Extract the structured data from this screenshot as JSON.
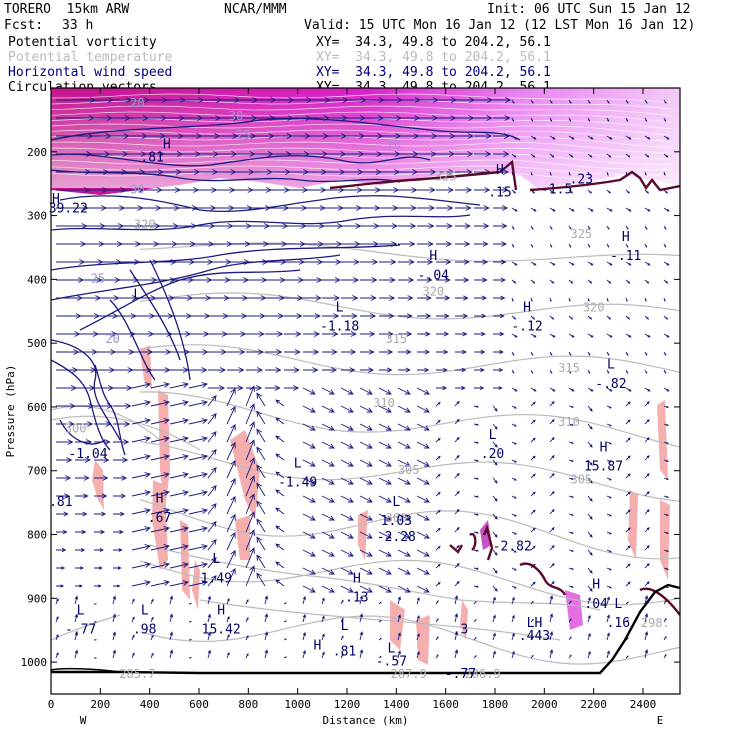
{
  "header": {
    "model": "TORERO  15km ARW",
    "org": "NCAR/MMM",
    "init": "Init: 06 UTC Sun 15 Jan 12",
    "fcst_label": "Fcst:",
    "fcst_value": "33 h",
    "valid": "Valid: 15 UTC Mon 16 Jan 12 (12 LST Mon 16 Jan 12)"
  },
  "fields": [
    {
      "name": "Potential vorticity",
      "xy": "XY=  34.3, 49.8 to 204.2, 56.1",
      "color": "#000000"
    },
    {
      "name": "Potential temperature",
      "xy": "XY=  34.3, 49.8 to 204.2, 56.1",
      "color": "#bbbbbb"
    },
    {
      "name": "Horizontal wind speed",
      "xy": "XY=  34.3, 49.8 to 204.2, 56.1",
      "color": "#000080"
    },
    {
      "name": "Circulation vectors",
      "xy": "XY=  34.3, 49.8 to 204.2, 56.1",
      "color": "#000000"
    }
  ],
  "colors": {
    "wind_speed": "#1a1a80",
    "theta": "#bbbbbb",
    "pv_low": "#f4a6a6",
    "pv_high": "#e020e0",
    "terrain": "#000000",
    "pv_contour": "#5a0a2a"
  },
  "chart_data": {
    "type": "cross-section",
    "xlabel": "Distance (km)",
    "ylabel": "Pressure (hPa)",
    "xlim": [
      0,
      2550
    ],
    "ylim": [
      1050,
      100
    ],
    "x_ticks": [
      "0",
      "200",
      "400",
      "600",
      "800",
      "1000",
      "1200",
      "1400",
      "1600",
      "1800",
      "2000",
      "2200",
      "2400"
    ],
    "x_tick_values": [
      0,
      200,
      400,
      600,
      800,
      1000,
      1200,
      1400,
      1600,
      1800,
      2000,
      2200,
      2400
    ],
    "y_ticks": [
      "200",
      "300",
      "400",
      "500",
      "600",
      "700",
      "800",
      "900",
      "1000"
    ],
    "y_tick_values": [
      200,
      300,
      400,
      500,
      600,
      700,
      800,
      900,
      1000
    ],
    "x_end_labels": {
      "left": "W",
      "right": "E"
    },
    "theta_labels": [
      {
        "text": "325",
        "x": 2150,
        "p": 335
      },
      {
        "text": "320",
        "x": 380,
        "p": 320
      },
      {
        "text": "320",
        "x": 1550,
        "p": 425
      },
      {
        "text": "320",
        "x": 2200,
        "p": 450
      },
      {
        "text": "315",
        "x": 1400,
        "p": 500
      },
      {
        "text": "315",
        "x": 2100,
        "p": 545
      },
      {
        "text": "310",
        "x": 1350,
        "p": 600
      },
      {
        "text": "310",
        "x": 2100,
        "p": 630
      },
      {
        "text": "305",
        "x": 1450,
        "p": 705
      },
      {
        "text": "305",
        "x": 2150,
        "p": 720
      },
      {
        "text": "300",
        "x": 100,
        "p": 640
      },
      {
        "text": "300",
        "x": 1400,
        "p": 780
      },
      {
        "text": "298.",
        "x": 2450,
        "p": 945
      },
      {
        "text": "285.7",
        "x": 350,
        "p": 1025
      },
      {
        "text": "287.9",
        "x": 1450,
        "p": 1025
      },
      {
        "text": "286.9",
        "x": 1750,
        "p": 1025
      },
      {
        "text": "325",
        "x": 1600,
        "p": 245
      }
    ],
    "wind_labels": [
      {
        "text": "20",
        "x": 350,
        "p": 130
      },
      {
        "text": "30",
        "x": 750,
        "p": 150
      },
      {
        "text": "25",
        "x": 780,
        "p": 180
      },
      {
        "text": "20",
        "x": 1390,
        "p": 195
      },
      {
        "text": "30",
        "x": 350,
        "p": 265
      },
      {
        "text": "25",
        "x": 190,
        "p": 405
      },
      {
        "text": "20",
        "x": 250,
        "p": 500
      }
    ],
    "pv_labels": [
      {
        "text": "H",
        "x": 1820,
        "p": 235
      },
      {
        "text": ".15",
        "x": 1820,
        "p": 270
      },
      {
        "text": "-1.5",
        "x": 2050,
        "p": 265
      },
      {
        "text": ".23",
        "x": 2150,
        "p": 250
      },
      {
        "text": "H",
        "x": 2330,
        "p": 340
      },
      {
        "text": "-.11",
        "x": 2330,
        "p": 370
      },
      {
        "text": "H",
        "x": 1550,
        "p": 370
      },
      {
        "text": "-.04",
        "x": 1550,
        "p": 400
      },
      {
        "text": "L",
        "x": 1170,
        "p": 450
      },
      {
        "text": "-1.18",
        "x": 1170,
        "p": 480
      },
      {
        "text": "H",
        "x": 1930,
        "p": 450
      },
      {
        "text": "-.12",
        "x": 1930,
        "p": 480
      },
      {
        "text": "L",
        "x": 2270,
        "p": 540
      },
      {
        "text": "-.82",
        "x": 2270,
        "p": 570
      },
      {
        "text": "L",
        "x": 1790,
        "p": 650
      },
      {
        "text": ".20",
        "x": 1790,
        "p": 680
      },
      {
        "text": "H",
        "x": 2240,
        "p": 670
      },
      {
        "text": "15.87",
        "x": 2240,
        "p": 700
      },
      {
        "text": "-1.04",
        "x": 150,
        "p": 680
      },
      {
        "text": "L",
        "x": 1000,
        "p": 695
      },
      {
        "text": "-1.49",
        "x": 1000,
        "p": 725
      },
      {
        "text": ".81",
        "x": 40,
        "p": 755
      },
      {
        "text": "H",
        "x": 440,
        "p": 750
      },
      {
        "text": ".67",
        "x": 440,
        "p": 780
      },
      {
        "text": "L",
        "x": 1400,
        "p": 755
      },
      {
        "text": "1.03",
        "x": 1400,
        "p": 785
      },
      {
        "text": "-2.28",
        "x": 1400,
        "p": 810
      },
      {
        "text": "-2.82",
        "x": 1870,
        "p": 825
      },
      {
        "text": "L",
        "x": 670,
        "p": 845
      },
      {
        "text": "1.49",
        "x": 670,
        "p": 875
      },
      {
        "text": "H",
        "x": 1240,
        "p": 875
      },
      {
        "text": ".13",
        "x": 1240,
        "p": 905
      },
      {
        "text": "H",
        "x": 2210,
        "p": 885
      },
      {
        "text": ".04",
        "x": 2210,
        "p": 915
      },
      {
        "text": "L",
        "x": 120,
        "p": 925
      },
      {
        "text": "-.77",
        "x": 120,
        "p": 955
      },
      {
        "text": "L",
        "x": 380,
        "p": 925
      },
      {
        "text": ".98",
        "x": 380,
        "p": 955
      },
      {
        "text": "H",
        "x": 690,
        "p": 925
      },
      {
        "text": "15.42",
        "x": 690,
        "p": 955
      },
      {
        "text": "L",
        "x": 1190,
        "p": 950
      },
      {
        "text": ".81",
        "x": 1190,
        "p": 990
      },
      {
        "text": "L",
        "x": 1380,
        "p": 985
      },
      {
        "text": "-.57",
        "x": 1380,
        "p": 1005
      },
      {
        "text": "LH",
        "x": 1960,
        "p": 945
      },
      {
        "text": ".443",
        "x": 1960,
        "p": 965
      },
      {
        "text": "L",
        "x": 2300,
        "p": 915
      },
      {
        "text": ".16",
        "x": 2300,
        "p": 945
      },
      {
        "text": ".3",
        "x": 1660,
        "p": 955
      },
      {
        "text": "-.77",
        "x": 1660,
        "p": 1025
      },
      {
        "text": "H",
        "x": 20,
        "p": 280
      },
      {
        "text": "39.22",
        "x": 70,
        "p": 295
      },
      {
        "text": "H",
        "x": 470,
        "p": 195
      },
      {
        "text": ".81",
        "x": 410,
        "p": 215
      },
      {
        "text": "L",
        "x": 350,
        "p": 430
      },
      {
        "text": "H",
        "x": 1080,
        "p": 980
      }
    ]
  }
}
